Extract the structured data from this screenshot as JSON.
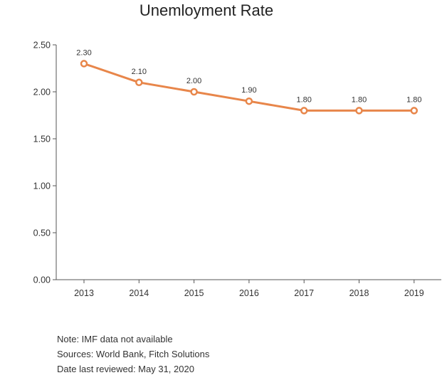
{
  "chart_data": {
    "type": "line",
    "title": "Unemloyment Rate",
    "xlabel": "",
    "ylabel": "",
    "categories": [
      "2013",
      "2014",
      "2015",
      "2016",
      "2017",
      "2018",
      "2019"
    ],
    "series": [
      {
        "values": [
          2.3,
          2.1,
          2.0,
          1.9,
          1.8,
          1.8,
          1.8
        ],
        "data_labels": [
          "2.30",
          "2.10",
          "2.00",
          "1.90",
          "1.80",
          "1.80",
          "1.80"
        ]
      }
    ],
    "ylim": [
      0,
      2.5
    ],
    "yticks": [
      0,
      0.5,
      1.0,
      1.5,
      2.0,
      2.5
    ],
    "ytick_labels": [
      "0.00",
      "0.50",
      "1.00",
      "1.50",
      "2.00",
      "2.50"
    ],
    "grid": false,
    "legend": "none",
    "colors": {
      "line": "#e8864a",
      "marker_fill": "#ffffff",
      "axis": "#555555"
    }
  },
  "notes": {
    "note": "Note: IMF data not available",
    "sources": "Sources: World Bank, Fitch Solutions",
    "reviewed": "Date last reviewed: May 31, 2020"
  }
}
